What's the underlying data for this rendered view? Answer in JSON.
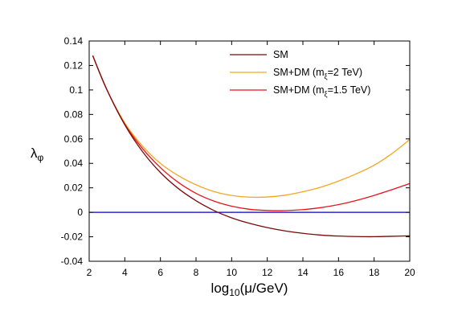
{
  "chart_data": {
    "type": "line",
    "title": "",
    "xlabel": {
      "main": "log",
      "sub": "10",
      "rest": "(μ/GeV)"
    },
    "ylabel": {
      "main": "λ",
      "sub": "φ"
    },
    "xlim": [
      2,
      20
    ],
    "ylim": [
      -0.04,
      0.14
    ],
    "xticks": [
      "2",
      "4",
      "6",
      "8",
      "10",
      "12",
      "14",
      "16",
      "18",
      "20"
    ],
    "yticks": [
      "-0.04",
      "-0.02",
      "0",
      "0.02",
      "0.04",
      "0.06",
      "0.08",
      "0.1",
      "0.12",
      "0.14"
    ],
    "grid": false,
    "legend_position": "top-right",
    "reference_line": {
      "y": 0,
      "color": "#0000cc"
    },
    "series": [
      {
        "name": "SM",
        "legend": {
          "main": "SM",
          "sub": "",
          "rest": ""
        },
        "color": "#7a0a0a",
        "x": [
          2.2,
          3,
          4,
          5,
          6,
          7,
          8,
          9,
          10,
          11,
          12,
          13,
          14,
          15,
          16,
          17,
          18,
          19,
          20
        ],
        "y": [
          0.128,
          0.1,
          0.0715,
          0.0495,
          0.0325,
          0.0195,
          0.0095,
          0.0015,
          -0.0045,
          -0.009,
          -0.0125,
          -0.0152,
          -0.0172,
          -0.0186,
          -0.0194,
          -0.0198,
          -0.0199,
          -0.0196,
          -0.0192
        ]
      },
      {
        "name": "SM+DM (mξ=2 TeV)",
        "legend": {
          "main": "SM+DM (m",
          "sub": "ξ",
          "rest": "=2 TeV)"
        },
        "color": "#f5a623",
        "x": [
          2.2,
          3,
          4,
          5,
          6,
          7,
          8,
          9,
          10,
          11,
          12,
          13,
          14,
          15,
          16,
          17,
          18,
          19,
          20
        ],
        "y": [
          0.128,
          0.1,
          0.073,
          0.054,
          0.04,
          0.03,
          0.0225,
          0.017,
          0.0138,
          0.0124,
          0.0125,
          0.014,
          0.0168,
          0.0205,
          0.0255,
          0.0315,
          0.0385,
          0.048,
          0.0595
        ]
      },
      {
        "name": "SM+DM (mξ=1.5 TeV)",
        "legend": {
          "main": "SM+DM (m",
          "sub": "ξ",
          "rest": "=1.5 TeV)"
        },
        "color": "#e8141c",
        "x": [
          2.2,
          3,
          4,
          5,
          6,
          7,
          8,
          9,
          10,
          11,
          12,
          13,
          14,
          15,
          16,
          17,
          18,
          19,
          20
        ],
        "y": [
          0.128,
          0.1,
          0.072,
          0.052,
          0.0365,
          0.0245,
          0.0155,
          0.0092,
          0.005,
          0.0025,
          0.0015,
          0.0014,
          0.0022,
          0.0038,
          0.0063,
          0.0097,
          0.0138,
          0.0185,
          0.0235
        ]
      }
    ]
  }
}
